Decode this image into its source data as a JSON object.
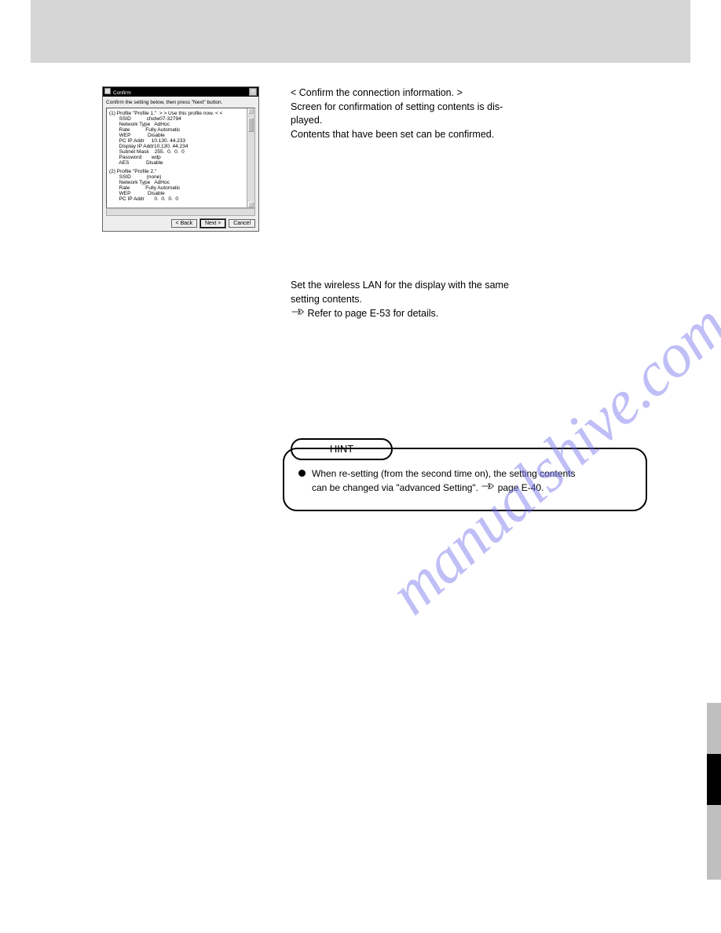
{
  "dialog": {
    "title": "Confirm",
    "instruction": "Confirm the setting below, then press \"Next\" button.",
    "profile1_header": "(1) Profile \"Profile 1.\"  > > Use this profile now. < <",
    "rows1": [
      [
        "SSID",
        "cfxdw07-32794"
      ],
      [
        "Network Type",
        "AdHoc"
      ],
      [
        "Rate",
        "Fully Automatic"
      ],
      [
        "WEP",
        "Disable"
      ],
      [
        "PC IP Addr",
        "10.130. 44.233"
      ],
      [
        "Display IP Addr",
        "10.130. 44.234"
      ],
      [
        "Subnet Mask",
        "255.  0.  0.  0"
      ],
      [
        "Password",
        "wdp"
      ],
      [
        "AES",
        "Disable"
      ]
    ],
    "profile2_header": "(2) Profile \"Profile 2.\"",
    "rows2": [
      [
        "SSID",
        "(none)"
      ],
      [
        "Network Type",
        "AdHoc"
      ],
      [
        "Rate",
        "Fully Automatic"
      ],
      [
        "WEP",
        "Disable"
      ],
      [
        "PC IP Addr",
        "  0.  0.  0.  0"
      ]
    ],
    "btn_back": "< Back",
    "btn_next": "Next >",
    "btn_cancel": "Cancel"
  },
  "side": {
    "p1_l1": "< Confirm the connection information. >",
    "p1_l2": "Screen for confirmation of setting contents is dis-",
    "p1_l3": "played.",
    "p1_l4": "Contents that have been set can be confirmed.",
    "p2_l1": "Set the wireless LAN for the display with the same",
    "p2_l2": "setting contents.",
    "p2_l3": "Refer to page E-53 for details.",
    "p2_l3_a": "Refer to page E-53 for details."
  },
  "hint": {
    "tab": "HINT",
    "text_l1": "When re-setting (from the second time on), the setting contents",
    "text_l2": "can be changed via \"advanced Setting\". ",
    "text_l3": " page E-40."
  },
  "watermark": "manualshive.com"
}
